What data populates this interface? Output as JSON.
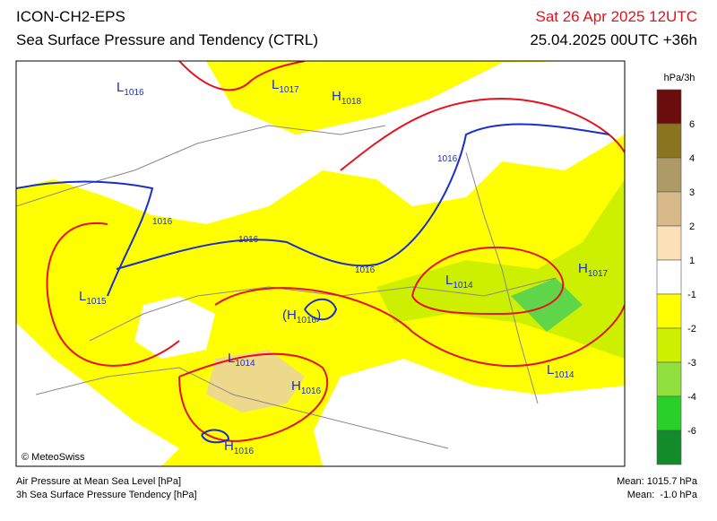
{
  "header": {
    "model": "ICON-CH2-EPS",
    "title": "Sea Surface Pressure and Tendency (CTRL)",
    "valid_time": "Sat 26 Apr 2025 12UTC",
    "run": "25.04.2025 00UTC +36h"
  },
  "map_labels": [
    {
      "text": "L",
      "sub": "1016"
    },
    {
      "text": "L",
      "sub": "1017"
    },
    {
      "text": "H",
      "sub": "1018"
    },
    {
      "text": "1016"
    },
    {
      "text": "1016"
    },
    {
      "text": "1016"
    },
    {
      "text": "1016"
    },
    {
      "text": "L",
      "sub": "1014"
    },
    {
      "text": "H",
      "sub": "1017"
    },
    {
      "text": "L",
      "sub": "1015"
    },
    {
      "text": "(H",
      "sub": "1016",
      "after": ")"
    },
    {
      "text": "L",
      "sub": "1014"
    },
    {
      "text": "H",
      "sub": "1016"
    },
    {
      "text": "L",
      "sub": "1014"
    },
    {
      "text": "H",
      "sub": "1016"
    }
  ],
  "copyright": "© MeteoSwiss",
  "colorbar": {
    "unit": "hPa/3h",
    "colors": [
      "#6b0d0d",
      "#8a7420",
      "#ad9a66",
      "#d8b98a",
      "#fce0b8",
      "#ffffff",
      "#ffff00",
      "#ccf000",
      "#8fe03c",
      "#28d028",
      "#128c2a"
    ],
    "labels": [
      "6",
      "4",
      "3",
      "2",
      "1",
      "-1",
      "-2",
      "-3",
      "-4",
      "-6"
    ]
  },
  "footer": {
    "line1": "Air Pressure at Mean Sea Level [hPa]",
    "line2": "3h Sea Surface Pressure Tendency [hPa]",
    "mean1": "Mean: 1015.7 hPa",
    "mean2": "Mean:  -1.0 hPa"
  }
}
